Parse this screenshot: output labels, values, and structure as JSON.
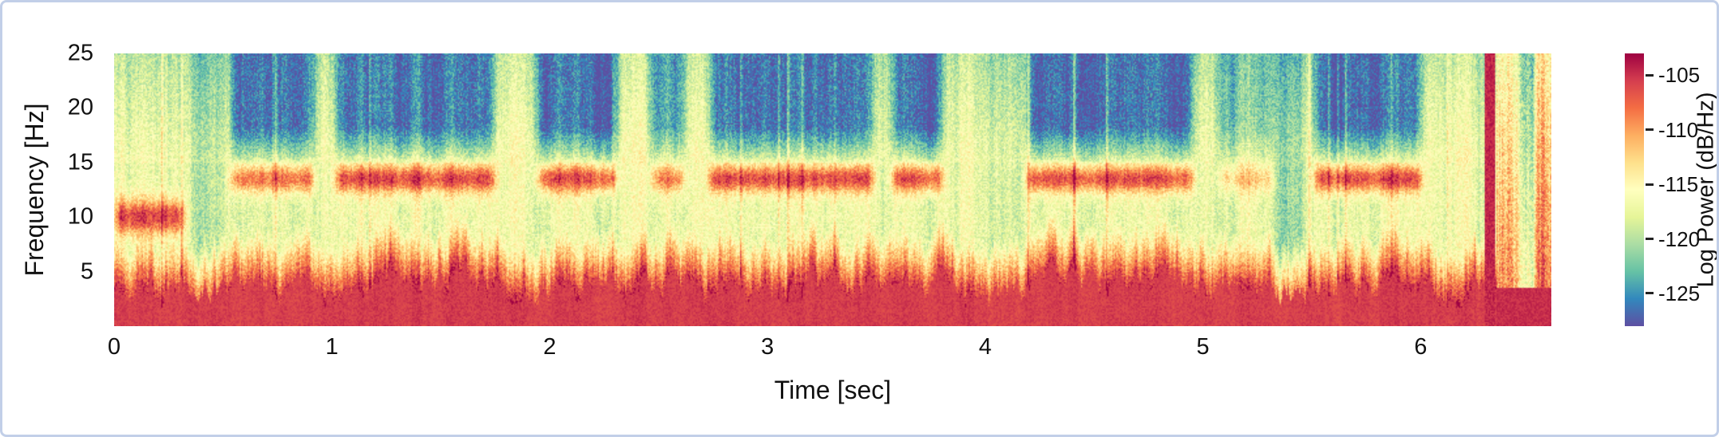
{
  "chart_data": {
    "type": "heatmap",
    "title": "",
    "xlabel": "Time [sec]",
    "ylabel": "Frequency [Hz]",
    "colorbar_label": "Log Power (dB/Hz)",
    "x_range": [
      0,
      6.6
    ],
    "y_range": [
      0,
      25
    ],
    "x_tick_values": [
      0,
      1,
      2,
      3,
      4,
      5,
      6
    ],
    "x_tick_labels": [
      "0",
      "1",
      "2",
      "3",
      "4",
      "5",
      "6"
    ],
    "y_tick_values": [
      25,
      20,
      15,
      10,
      5
    ],
    "y_tick_labels": [
      "25",
      "20",
      "15",
      "10",
      "5"
    ],
    "colorbar_tick_values": [
      -105,
      -110,
      -115,
      -120,
      -125
    ],
    "colorbar_tick_labels": [
      "-105",
      "-110",
      "-115",
      "-120",
      "-125"
    ],
    "value_range_db": [
      -128,
      -103
    ],
    "colormap": "spectral-reversed",
    "colormap_stops": [
      [
        0,
        "#5e4fa2"
      ],
      [
        0.1,
        "#3288bd"
      ],
      [
        0.2,
        "#66c2a5"
      ],
      [
        0.3,
        "#abdda4"
      ],
      [
        0.4,
        "#e6f598"
      ],
      [
        0.5,
        "#ffffbf"
      ],
      [
        0.6,
        "#fee08b"
      ],
      [
        0.7,
        "#fdae61"
      ],
      [
        0.8,
        "#f46d43"
      ],
      [
        0.9,
        "#d53e4f"
      ],
      [
        1,
        "#9e0142"
      ]
    ],
    "features": {
      "low_freq_high_power_max_hz": 4,
      "band_center_hz": 13.5,
      "band_width_hz": 1.8,
      "initial_band": {
        "time": [
          0,
          0.33
        ],
        "center_hz": 10
      },
      "bursts": [
        {
          "start": 0.52,
          "end": 0.93,
          "intensity": 0.9
        },
        {
          "start": 1.0,
          "end": 1.76,
          "intensity": 1
        },
        {
          "start": 1.93,
          "end": 2.32,
          "intensity": 1
        },
        {
          "start": 2.45,
          "end": 2.63,
          "intensity": 0.75
        },
        {
          "start": 2.72,
          "end": 3.5,
          "intensity": 1
        },
        {
          "start": 3.56,
          "end": 3.82,
          "intensity": 1
        },
        {
          "start": 4.18,
          "end": 4.97,
          "intensity": 1
        },
        {
          "start": 5.06,
          "end": 5.34,
          "intensity": 0.45
        },
        {
          "start": 5.5,
          "end": 6.02,
          "intensity": 1
        }
      ],
      "cool_columns": [
        {
          "start": 0.34,
          "end": 0.5
        },
        {
          "start": 5.34,
          "end": 5.47
        }
      ],
      "artifact_time_sec": 6.32,
      "tail_start_sec": 6.35,
      "noise_db": 2.2
    }
  }
}
